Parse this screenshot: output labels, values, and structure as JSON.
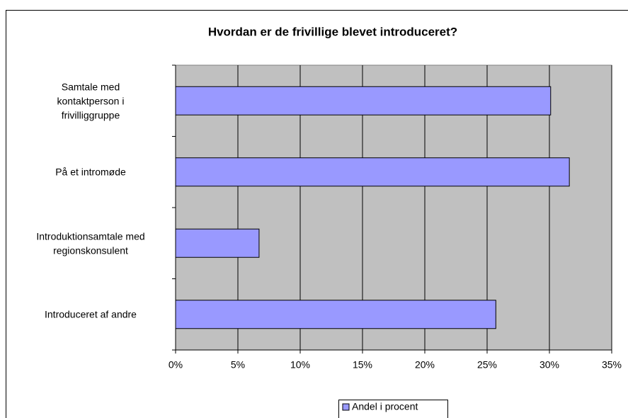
{
  "chart_data": {
    "type": "barh",
    "title": "Hvordan er de frivillige blevet introduceret?",
    "categories": [
      "Samtale med\nkontaktperson i\nfrivilliggruppe",
      "På et intromøde",
      "Introduktionsamtale med\nregionskonsulent",
      "Introduceret af andre"
    ],
    "series": [
      {
        "name": "Andel i procent",
        "color": "#9999ff",
        "values": [
          30.1,
          31.6,
          6.7,
          25.7
        ]
      }
    ],
    "xlim": [
      0,
      35
    ],
    "xticks": [
      {
        "value": 0,
        "label": "0%"
      },
      {
        "value": 5,
        "label": "5%"
      },
      {
        "value": 10,
        "label": "10%"
      },
      {
        "value": 15,
        "label": "15%"
      },
      {
        "value": 20,
        "label": "20%"
      },
      {
        "value": 25,
        "label": "25%"
      },
      {
        "value": 30,
        "label": "30%"
      },
      {
        "value": 35,
        "label": "35%"
      }
    ],
    "grid": true,
    "legend": "bottom",
    "plot_background": "#c0c0c0"
  }
}
